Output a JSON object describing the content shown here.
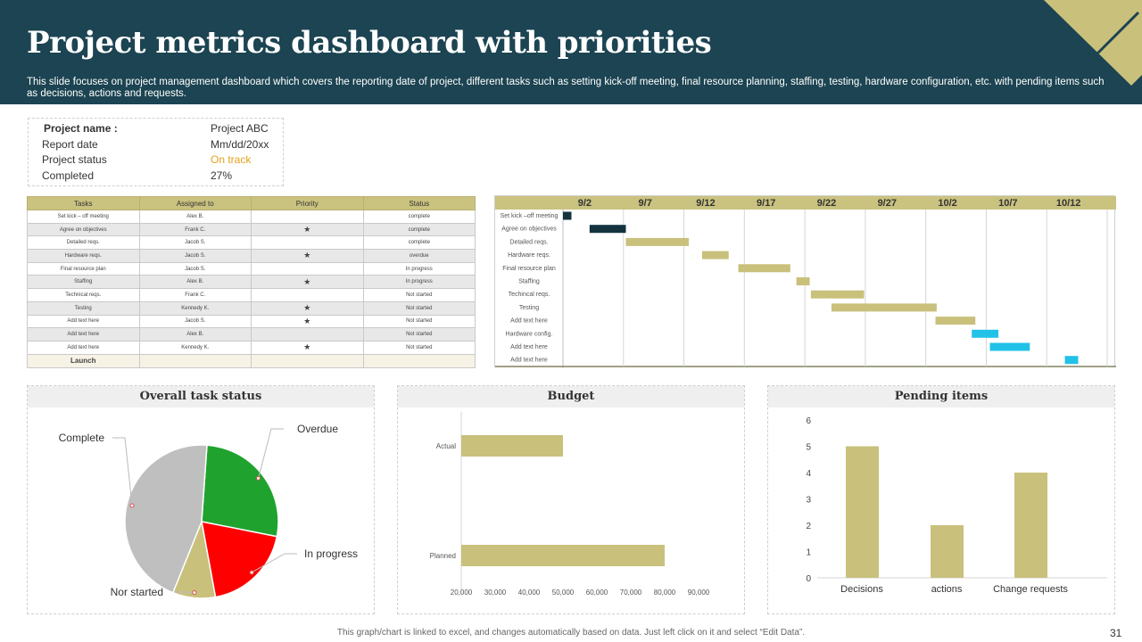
{
  "header": {
    "title": "Project metrics dashboard with priorities",
    "subtitle": "This slide focuses on project management dashboard which covers the reporting date of project, different tasks such as setting kick-off meeting, final resource planning, staffing, testing, hardware configuration, etc. with pending items such as decisions, actions and requests."
  },
  "project_info": {
    "name_label": "Project name :",
    "name_value": "Project ABC",
    "date_label": "Report date",
    "date_value": "Mm/dd/20xx",
    "status_label": "Project status",
    "status_value": "On track",
    "completed_label": "Completed",
    "completed_value": "27%"
  },
  "task_table": {
    "headers": [
      "Tasks",
      "Assigned to",
      "Priority",
      "Status"
    ],
    "rows": [
      {
        "task": "Set kick – off meeting",
        "assigned": "Alex B.",
        "priority": "",
        "status": "complete",
        "status_class": "st-complete"
      },
      {
        "task": "Agree on objectives",
        "assigned": "Frank C.",
        "priority": "★",
        "status": "complete",
        "status_class": "st-complete"
      },
      {
        "task": "Detailed reqs.",
        "assigned": "Jacob S.",
        "priority": "",
        "status": "complete",
        "status_class": "st-complete"
      },
      {
        "task": "Hardware reqs.",
        "assigned": "Jacob S.",
        "priority": "★",
        "status": "overdue",
        "status_class": "st-overdue"
      },
      {
        "task": "Final resource plan",
        "assigned": "Jacob S.",
        "priority": "",
        "status": "In progress",
        "status_class": "st-progress"
      },
      {
        "task": "Staffing",
        "assigned": "Alex B.",
        "priority": "★",
        "status": "In progress",
        "status_class": "st-progress"
      },
      {
        "task": "Technical reqs.",
        "assigned": "Frank C.",
        "priority": "",
        "status": "Not started",
        "status_class": "st-notstarted"
      },
      {
        "task": "Testing",
        "assigned": "Kennedy K.",
        "priority": "★",
        "status": "Not started",
        "status_class": "st-notstarted"
      },
      {
        "task": "Add text here",
        "assigned": "Jacob S.",
        "priority": "★",
        "status": "Not started",
        "status_class": "st-notstarted"
      },
      {
        "task": "Add text here",
        "assigned": "Alex B.",
        "priority": "",
        "status": "Not started",
        "status_class": "st-notstarted"
      },
      {
        "task": "Add text here",
        "assigned": "Kennedy K.",
        "priority": "★",
        "status": "Not started",
        "status_class": "st-notstarted"
      }
    ],
    "launch_label": "Launch"
  },
  "colors": {
    "header_bg": "#1c4452",
    "accent_gold": "#c9c07c",
    "dark_navy": "#14333f",
    "cyan": "#22c1e8",
    "complete": "#bfbfbf",
    "overdue": "#1fa32e",
    "in_progress": "#ff0000",
    "not_started": "#c9c07c"
  },
  "panels": {
    "task_status_title": "Overall task status",
    "budget_title": "Budget",
    "pending_title": "Pending items"
  },
  "chart_data": [
    {
      "type": "gantt",
      "title": "",
      "date_ticks": [
        "9/2",
        "9/7",
        "9/12",
        "9/17",
        "9/22",
        "9/27",
        "10/2",
        "10/7",
        "10/12"
      ],
      "axis_start_day": 0,
      "axis_end_day": 45,
      "tasks": [
        {
          "label": "Set kick –off meeting",
          "start": 0,
          "duration": 0.7,
          "color": "#14333f"
        },
        {
          "label": "Agree on objectives",
          "start": 2.2,
          "duration": 3,
          "color": "#14333f"
        },
        {
          "label": "Detailed reqs.",
          "start": 5.2,
          "duration": 5.2,
          "color": "#c9c07c"
        },
        {
          "label": "Hardware reqs.",
          "start": 11.5,
          "duration": 2.2,
          "color": "#c9c07c"
        },
        {
          "label": "Final resource plan",
          "start": 14.5,
          "duration": 4.3,
          "color": "#c9c07c"
        },
        {
          "label": "Staffing",
          "start": 19.3,
          "duration": 1.1,
          "color": "#c9c07c"
        },
        {
          "label": "Techincal reqs.",
          "start": 20.5,
          "duration": 4.4,
          "color": "#c9c07c"
        },
        {
          "label": "Testing",
          "start": 22.2,
          "duration": 8.7,
          "color": "#c9c07c"
        },
        {
          "label": "Add text here",
          "start": 30.8,
          "duration": 3.3,
          "color": "#c9c07c"
        },
        {
          "label": "Hardware config.",
          "start": 33.8,
          "duration": 2.2,
          "color": "#22c1e8"
        },
        {
          "label": "Add text here",
          "start": 35.3,
          "duration": 3.3,
          "color": "#22c1e8"
        },
        {
          "label": "Add text here",
          "start": 41.5,
          "duration": 1.1,
          "color": "#22c1e8"
        }
      ]
    },
    {
      "type": "pie",
      "title": "Overall task status",
      "labels": [
        "Overdue",
        "In progress",
        "Nor started",
        "Complete"
      ],
      "values": [
        27,
        19,
        9,
        45
      ],
      "colors": [
        "#1fa32e",
        "#ff0000",
        "#c9c07c",
        "#bfbfbf"
      ],
      "start_angle_deg": 4
    },
    {
      "type": "bar",
      "orientation": "horizontal",
      "title": "Budget",
      "categories": [
        "Actual",
        "Planned"
      ],
      "values": [
        50000,
        80000
      ],
      "xlim": [
        20000,
        90000
      ],
      "ticks": [
        "20,000",
        "30,000",
        "40,000",
        "50,000",
        "60,000",
        "70,000",
        "80,000",
        "90,000"
      ],
      "tick_values": [
        20000,
        30000,
        40000,
        50000,
        60000,
        70000,
        80000,
        90000
      ],
      "color": "#c9c07c"
    },
    {
      "type": "bar",
      "title": "Pending items",
      "categories": [
        "Decisions",
        "actions",
        "Change requests"
      ],
      "values": [
        5,
        2,
        4
      ],
      "ylim": [
        0,
        6
      ],
      "ticks": [
        "0",
        "1",
        "2",
        "3",
        "4",
        "5",
        "6"
      ],
      "color": "#c9c07c"
    }
  ],
  "footer": {
    "note": "This graph/chart is linked to excel, and changes automatically based on data. Just left click on it and select “Edit Data”.",
    "page": "31"
  }
}
